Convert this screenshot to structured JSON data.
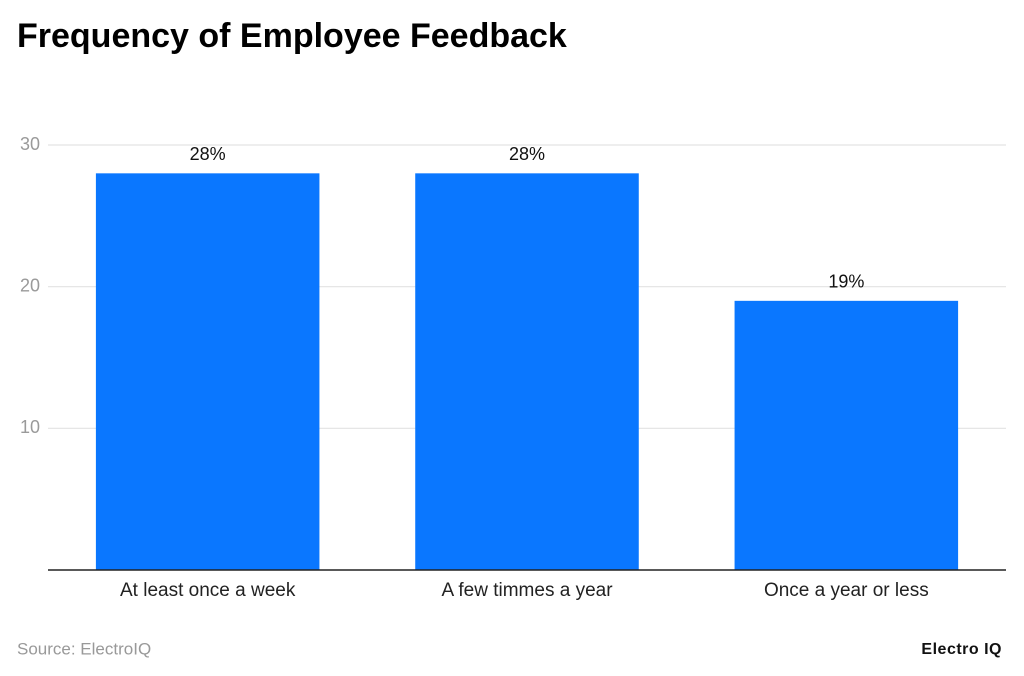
{
  "chart_data": {
    "type": "bar",
    "title": "Frequency of Employee Feedback",
    "categories": [
      "At least once a week",
      "A few timmes a year",
      "Once a year or less"
    ],
    "values": [
      28,
      28,
      19
    ],
    "value_labels": [
      "28%",
      "28%",
      "19%"
    ],
    "color": "#0a77ff",
    "ylim": [
      0,
      30
    ],
    "yticks": [
      10,
      20,
      30
    ],
    "grid": true,
    "source": "Source: ElectroIQ",
    "brand": "Electro IQ"
  }
}
